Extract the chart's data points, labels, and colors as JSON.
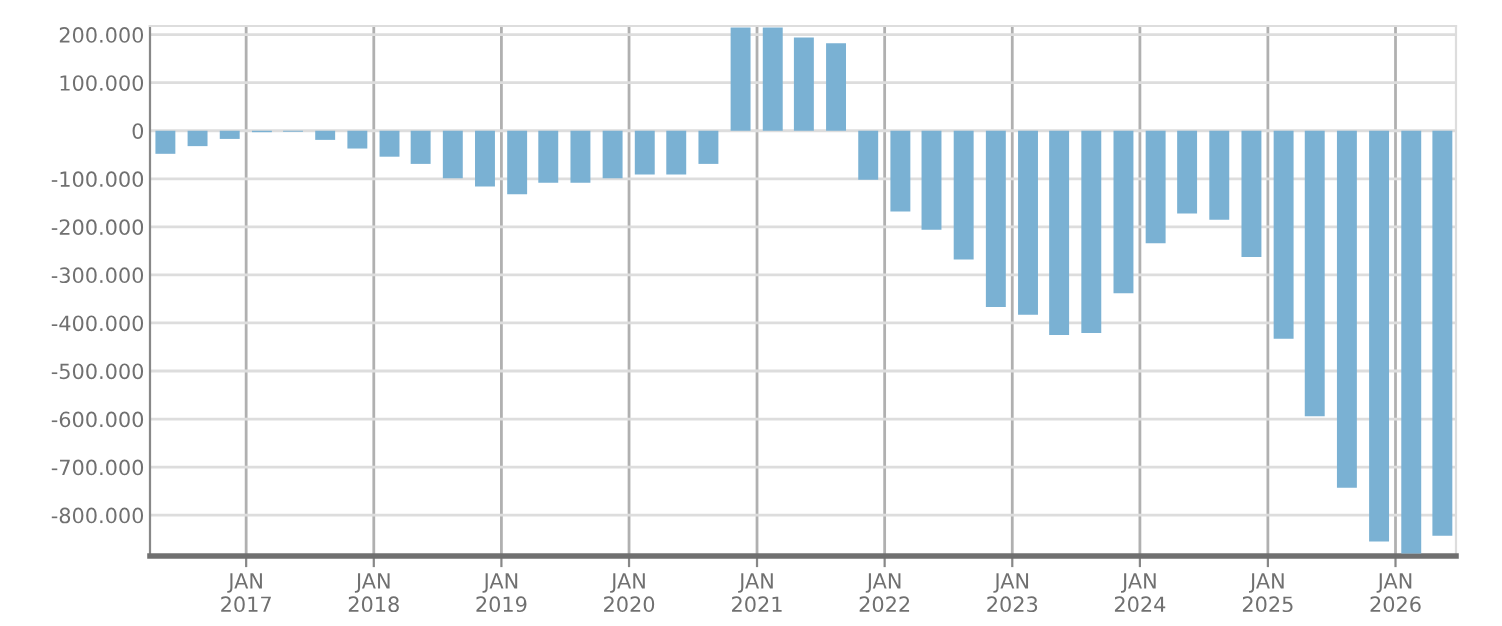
{
  "chart_data": {
    "type": "bar",
    "x": [
      "2016-05-15",
      "2016-08-15",
      "2016-11-15",
      "2017-02-15",
      "2017-05-15",
      "2017-08-15",
      "2017-11-15",
      "2018-02-15",
      "2018-05-15",
      "2018-08-15",
      "2018-11-15",
      "2019-02-15",
      "2019-05-15",
      "2019-08-15",
      "2019-11-15",
      "2020-02-15",
      "2020-05-15",
      "2020-08-15",
      "2020-11-15",
      "2021-02-15",
      "2021-05-15",
      "2021-08-15",
      "2021-11-15",
      "2022-02-15",
      "2022-05-15",
      "2022-08-15",
      "2022-11-15",
      "2023-02-15",
      "2023-05-15",
      "2023-08-15",
      "2023-11-15",
      "2024-02-15",
      "2024-05-15",
      "2024-08-15",
      "2024-11-15",
      "2025-02-15",
      "2025-05-15",
      "2025-08-15",
      "2025-11-15",
      "2026-02-15",
      "2026-05-15"
    ],
    "values": [
      -48000,
      -32000,
      -17000,
      -3000,
      -2000,
      -19000,
      -37000,
      -54000,
      -69000,
      -99000,
      -116000,
      -132000,
      -108000,
      -108000,
      -99000,
      -91000,
      -91000,
      -69000,
      215000,
      215000,
      194000,
      182000,
      -102000,
      -168000,
      -206000,
      -268000,
      -367000,
      -383000,
      -425000,
      -421000,
      -338000,
      -234000,
      -172000,
      -185000,
      -263000,
      -433000,
      -594000,
      -743000,
      -855000,
      -880000,
      -843000
    ],
    "color": "#7ab1d3",
    "ylim": [
      -885000,
      218000
    ],
    "yticks": [
      {
        "value": -800000,
        "label": "-800.000"
      },
      {
        "value": -700000,
        "label": "-700.000"
      },
      {
        "value": -600000,
        "label": "-600.000"
      },
      {
        "value": -500000,
        "label": "-500.000"
      },
      {
        "value": -400000,
        "label": "-400.000"
      },
      {
        "value": -300000,
        "label": "-300.000"
      },
      {
        "value": -200000,
        "label": "-200.000"
      },
      {
        "value": -100000,
        "label": "-100.000"
      },
      0,
      {
        "value": 100000,
        "label": "100.000"
      },
      {
        "value": 200000,
        "label": "200.000"
      }
    ],
    "xlim": [
      "2016-04-01",
      "2026-06-23"
    ],
    "xticks": [
      {
        "value": "2017-01-01",
        "label": "JAN\n2017"
      },
      {
        "value": "2018-01-01",
        "label": "JAN\n2018"
      },
      {
        "value": "2019-01-01",
        "label": "JAN\n2019"
      },
      {
        "value": "2020-01-01",
        "label": "JAN\n2020"
      },
      {
        "value": "2021-01-01",
        "label": "JAN\n2021"
      },
      {
        "value": "2022-01-01",
        "label": "JAN\n2022"
      },
      {
        "value": "2023-01-01",
        "label": "JAN\n2023"
      },
      {
        "value": "2024-01-01",
        "label": "JAN\n2024"
      },
      {
        "value": "2025-01-01",
        "label": "JAN\n2025"
      },
      {
        "value": "2026-01-01",
        "label": "JAN\n2026"
      }
    ],
    "grid": true
  }
}
